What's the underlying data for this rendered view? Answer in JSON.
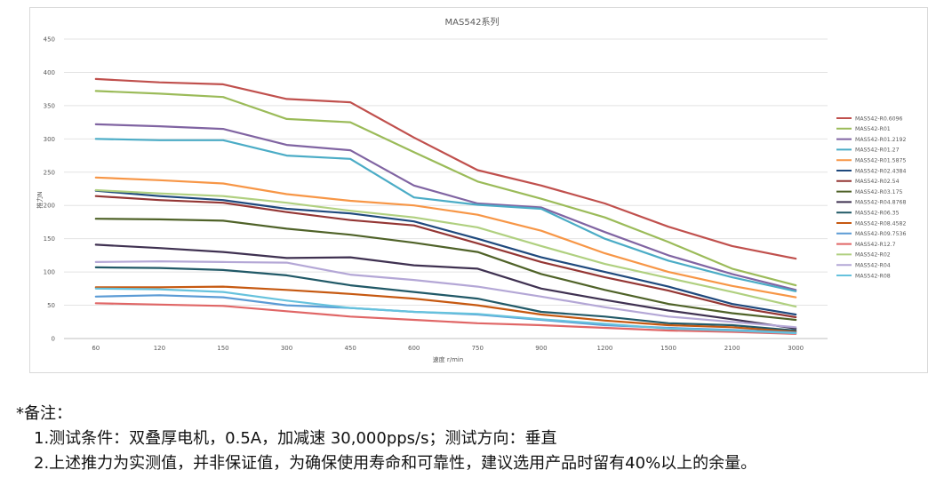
{
  "chart_data": {
    "type": "line",
    "title": "MAS542系列",
    "xlabel": "速度 r/min",
    "ylabel": "推力N",
    "ylim": [
      0,
      450
    ],
    "yticks": [
      0,
      50,
      100,
      150,
      200,
      250,
      300,
      350,
      400,
      450
    ],
    "categories": [
      "60",
      "120",
      "150",
      "300",
      "450",
      "600",
      "750",
      "900",
      "1200",
      "1500",
      "2100",
      "3000"
    ],
    "grid": "horizontal",
    "legend_position": "right",
    "series": [
      {
        "name": "MAS542-R0.6096",
        "color": "#c0504d",
        "values": [
          390,
          385,
          382,
          360,
          355,
          302,
          253,
          230,
          203,
          168,
          139,
          120
        ]
      },
      {
        "name": "MAS542-R01",
        "color": "#9bbb59",
        "values": [
          372,
          368,
          363,
          330,
          325,
          280,
          236,
          210,
          182,
          145,
          105,
          80
        ]
      },
      {
        "name": "MAS542-R01.2192",
        "color": "#8064a2",
        "values": [
          322,
          319,
          315,
          291,
          283,
          230,
          203,
          197,
          160,
          125,
          97,
          73
        ]
      },
      {
        "name": "MAS542-R01.27",
        "color": "#4bacc6",
        "values": [
          300,
          298,
          298,
          275,
          270,
          212,
          201,
          195,
          150,
          117,
          92,
          71
        ]
      },
      {
        "name": "MAS542-R01.5875",
        "color": "#f79646",
        "values": [
          242,
          238,
          233,
          217,
          207,
          200,
          186,
          162,
          128,
          100,
          79,
          62
        ]
      },
      {
        "name": "MAS542-R02.4384",
        "color": "#1f497d",
        "values": [
          222,
          214,
          208,
          195,
          188,
          176,
          150,
          122,
          100,
          78,
          52,
          36
        ]
      },
      {
        "name": "MAS542-R02.54",
        "color": "#943634",
        "values": [
          214,
          208,
          204,
          190,
          178,
          170,
          143,
          115,
          92,
          72,
          48,
          32
        ]
      },
      {
        "name": "MAS542-R03.175",
        "color": "#4f6228",
        "values": [
          180,
          179,
          177,
          165,
          156,
          144,
          130,
          97,
          73,
          52,
          38,
          28
        ]
      },
      {
        "name": "MAS542-R04.8768",
        "color": "#3f3151",
        "values": [
          141,
          136,
          130,
          121,
          122,
          110,
          105,
          75,
          58,
          42,
          29,
          15
        ]
      },
      {
        "name": "MAS542-R06.35",
        "color": "#215967",
        "values": [
          107,
          106,
          103,
          95,
          80,
          70,
          60,
          40,
          33,
          23,
          20,
          12
        ]
      },
      {
        "name": "MAS542-R08.4582",
        "color": "#c65911",
        "values": [
          77,
          77,
          78,
          73,
          67,
          60,
          50,
          36,
          27,
          20,
          17,
          10
        ]
      },
      {
        "name": "MAS542-R09.7536",
        "color": "#5b9bd5",
        "values": [
          63,
          65,
          62,
          50,
          46,
          40,
          36,
          28,
          20,
          16,
          13,
          9
        ]
      },
      {
        "name": "MAS542-R12.7",
        "color": "#e06666",
        "values": [
          53,
          51,
          49,
          41,
          33,
          28,
          23,
          20,
          16,
          12,
          10,
          7
        ]
      },
      {
        "name": "MAS542-R02",
        "color": "#b0d080",
        "values": [
          223,
          218,
          214,
          204,
          192,
          182,
          167,
          139,
          112,
          91,
          70,
          48
        ]
      },
      {
        "name": "MAS542-R04",
        "color": "#b4a7d6",
        "values": [
          115,
          116,
          115,
          114,
          96,
          88,
          78,
          63,
          47,
          33,
          25,
          17
        ]
      },
      {
        "name": "MAS542-R08",
        "color": "#66c2dd",
        "values": [
          75,
          74,
          70,
          57,
          46,
          40,
          37,
          29,
          22,
          15,
          12,
          8
        ]
      }
    ]
  },
  "notes": {
    "title": "*备注：",
    "line1": "1.测试条件：双叠厚电机，0.5A，加减速 30,000pps/s；测试方向：垂直",
    "line2": "2.上述推力为实测值，并非保证值，为确保使用寿命和可靠性，建议选用产品时留有40%以上的余量。"
  }
}
